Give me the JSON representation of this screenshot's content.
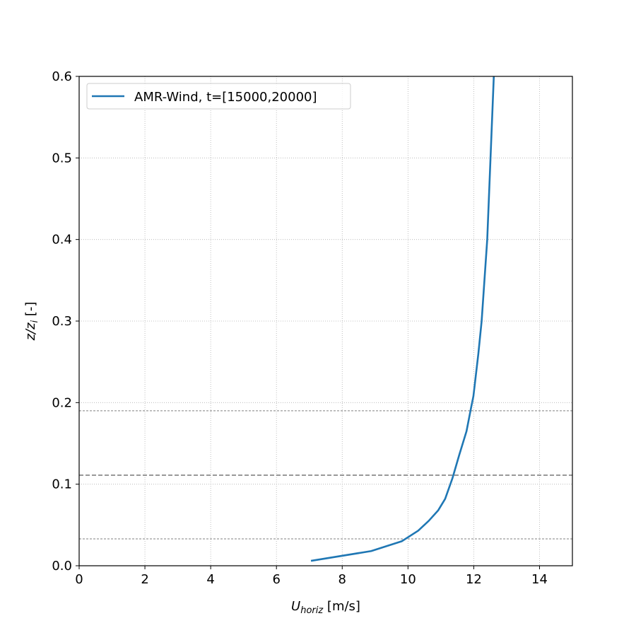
{
  "chart_data": {
    "type": "line",
    "title": "",
    "xlabel_main": "U",
    "xlabel_sub": "horiz",
    "xlabel_unit": " [m/s]",
    "ylabel_main": "z/z",
    "ylabel_sub": "i",
    "ylabel_unit": " [-]",
    "xlim": [
      0,
      15
    ],
    "ylim": [
      0,
      0.6
    ],
    "xticks": [
      0,
      2,
      4,
      6,
      8,
      10,
      12,
      14
    ],
    "yticks": [
      0.0,
      0.1,
      0.2,
      0.3,
      0.4,
      0.5,
      0.6
    ],
    "ytick_labels": [
      "0.0",
      "0.1",
      "0.2",
      "0.3",
      "0.4",
      "0.5",
      "0.6"
    ],
    "grid": true,
    "legend_position": "top-left",
    "series": [
      {
        "name": "AMR-Wind, t=[15000,20000]",
        "color": "#1f77b4",
        "x": [
          7.05,
          8.88,
          9.81,
          10.31,
          10.63,
          10.92,
          11.13,
          11.35,
          11.56,
          11.78,
          11.92,
          11.99,
          12.14,
          12.24,
          12.41,
          12.51,
          12.61
        ],
        "y": [
          0.006,
          0.018,
          0.03,
          0.043,
          0.055,
          0.068,
          0.082,
          0.107,
          0.136,
          0.165,
          0.194,
          0.208,
          0.26,
          0.3,
          0.4,
          0.5,
          0.6
        ]
      }
    ],
    "hlines": [
      {
        "y": 0.19,
        "style": "thin"
      },
      {
        "y": 0.111,
        "style": "thick"
      },
      {
        "y": 0.033,
        "style": "thin"
      }
    ],
    "hline_color": "#808080"
  }
}
